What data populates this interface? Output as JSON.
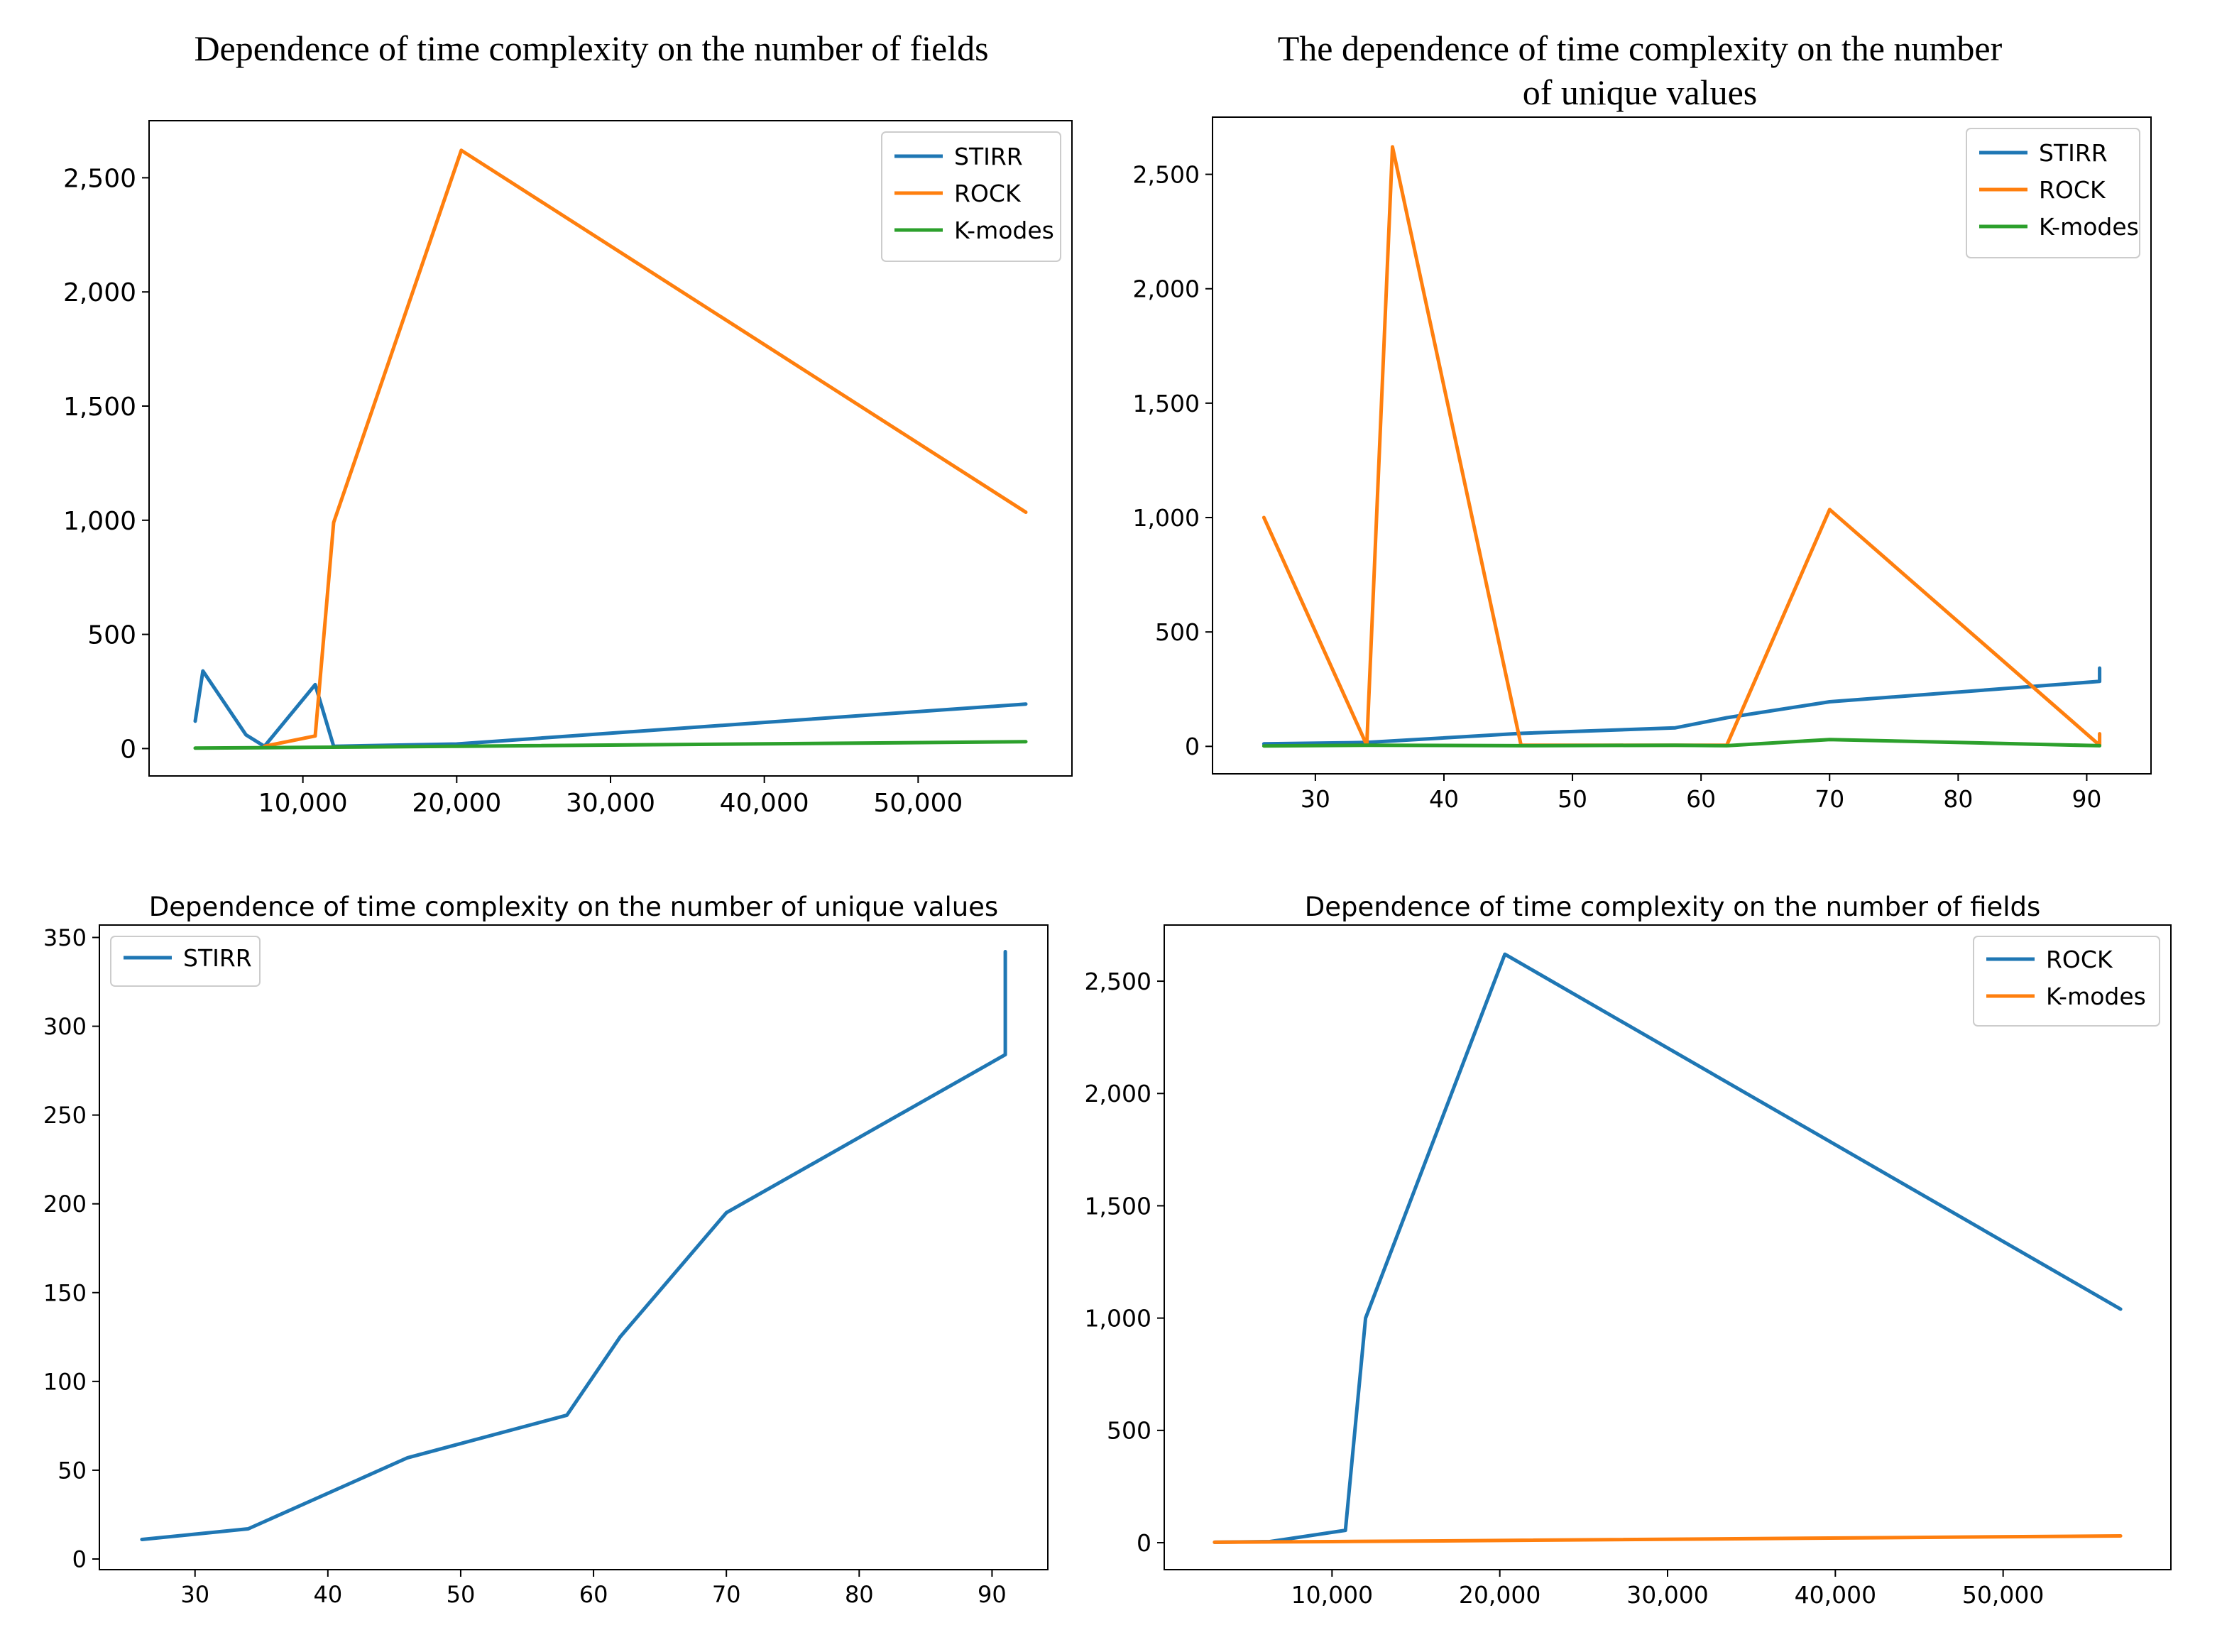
{
  "chart_data": [
    {
      "type": "line",
      "title": "Dependence of time complexity on the number of fields",
      "xlabel": "",
      "ylabel": "",
      "xlim": [
        0,
        60000
      ],
      "ylim": [
        -120,
        2750
      ],
      "xticks": [
        10000,
        20000,
        30000,
        40000,
        50000
      ],
      "xtick_labels": [
        "10,000",
        "20,000",
        "30,000",
        "40,000",
        "50,000"
      ],
      "yticks": [
        0,
        500,
        1000,
        1500,
        2000,
        2500
      ],
      "ytick_labels": [
        "0",
        "500",
        "1,000",
        "1,500",
        "2,000",
        "2,500"
      ],
      "legend": "top-right",
      "series": [
        {
          "name": "STIRR",
          "color": "#1f77b4",
          "x": [
            3000,
            3500,
            6300,
            7500,
            10800,
            12000,
            20000,
            57000
          ],
          "y": [
            120,
            340,
            60,
            10,
            280,
            10,
            20,
            195
          ]
        },
        {
          "name": "ROCK",
          "color": "#ff7f0e",
          "x": [
            7500,
            10800,
            12000,
            20300,
            57000
          ],
          "y": [
            10,
            55,
            990,
            2620,
            1035
          ]
        },
        {
          "name": "K-modes",
          "color": "#2ca02c",
          "x": [
            3000,
            10000,
            20000,
            57000
          ],
          "y": [
            2,
            5,
            10,
            30
          ]
        }
      ]
    },
    {
      "type": "line",
      "title": "The dependence of time complexity on the number of unique values",
      "xlabel": "",
      "ylabel": "",
      "xlim": [
        22,
        95
      ],
      "ylim": [
        -120,
        2750
      ],
      "xticks": [
        30,
        40,
        50,
        60,
        70,
        80,
        90
      ],
      "xtick_labels": [
        "30",
        "40",
        "50",
        "60",
        "70",
        "80",
        "90"
      ],
      "yticks": [
        0,
        500,
        1000,
        1500,
        2000,
        2500
      ],
      "ytick_labels": [
        "0",
        "500",
        "1,000",
        "1,500",
        "2,000",
        "2,500"
      ],
      "legend": "top-right",
      "series": [
        {
          "name": "STIRR",
          "color": "#1f77b4",
          "x": [
            26,
            34,
            46,
            58,
            62,
            70,
            91,
            91
          ],
          "y": [
            11,
            17,
            57,
            81,
            125,
            195,
            284,
            342
          ]
        },
        {
          "name": "ROCK",
          "color": "#ff7f0e",
          "x": [
            26,
            34,
            36,
            46,
            62,
            70,
            91,
            91
          ],
          "y": [
            1000,
            5,
            2620,
            5,
            5,
            1035,
            5,
            55
          ]
        },
        {
          "name": "K-modes",
          "color": "#2ca02c",
          "x": [
            26,
            34,
            46,
            58,
            62,
            70,
            91
          ],
          "y": [
            2,
            5,
            3,
            5,
            3,
            30,
            3
          ]
        }
      ]
    },
    {
      "type": "line",
      "title": "Dependence of time complexity on the number of unique values",
      "xlabel": "",
      "ylabel": "",
      "xlim": [
        22.8,
        94.2
      ],
      "ylim": [
        -6,
        357
      ],
      "xticks": [
        30,
        40,
        50,
        60,
        70,
        80,
        90
      ],
      "xtick_labels": [
        "30",
        "40",
        "50",
        "60",
        "70",
        "80",
        "90"
      ],
      "yticks": [
        0,
        50,
        100,
        150,
        200,
        250,
        300,
        350
      ],
      "ytick_labels": [
        "0",
        "50",
        "100",
        "150",
        "200",
        "250",
        "300",
        "350"
      ],
      "legend": "top-left",
      "series": [
        {
          "name": "STIRR",
          "color": "#1f77b4",
          "x": [
            26,
            34,
            46,
            58,
            62,
            70,
            91,
            91
          ],
          "y": [
            11,
            17,
            57,
            81,
            125,
            195,
            284,
            342
          ]
        }
      ]
    },
    {
      "type": "line",
      "title": "Dependence of time complexity on the number of fields",
      "xlabel": "",
      "ylabel": "",
      "xlim": [
        0,
        60000
      ],
      "ylim": [
        -120,
        2750
      ],
      "xticks": [
        10000,
        20000,
        30000,
        40000,
        50000
      ],
      "xtick_labels": [
        "10,000",
        "20,000",
        "30,000",
        "40,000",
        "50,000"
      ],
      "yticks": [
        0,
        500,
        1000,
        1500,
        2000,
        2500
      ],
      "ytick_labels": [
        "0",
        "500",
        "1,000",
        "1,500",
        "2,000",
        "2,500"
      ],
      "legend": "top-right",
      "series": [
        {
          "name": "ROCK",
          "color": "#1f77b4",
          "x": [
            3000,
            6300,
            10800,
            12000,
            20300,
            57000
          ],
          "y": [
            2,
            5,
            55,
            1000,
            2620,
            1040
          ]
        },
        {
          "name": "K-modes",
          "color": "#ff7f0e",
          "x": [
            3000,
            10000,
            20000,
            57000
          ],
          "y": [
            2,
            5,
            10,
            30
          ]
        }
      ]
    }
  ]
}
